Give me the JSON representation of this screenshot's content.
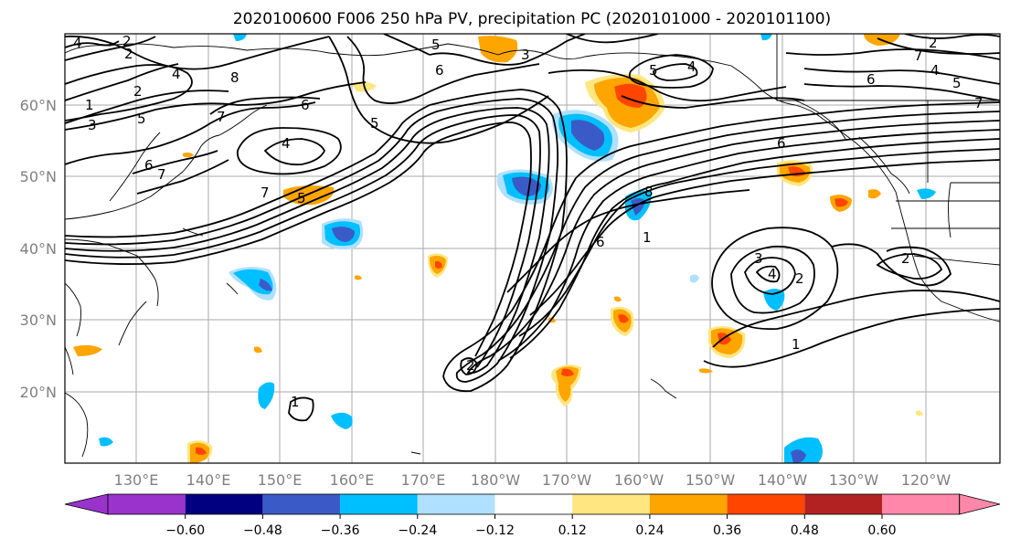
{
  "title": "2020100600 F006 250 hPa PV, precipitation PC (2020101000 - 2020101100)",
  "map": {
    "lat_labels": [
      "60°N",
      "50°N",
      "40°N",
      "30°N",
      "20°N"
    ],
    "lon_labels": [
      "130°E",
      "140°E",
      "150°E",
      "160°E",
      "170°E",
      "180°W",
      "170°W",
      "160°W",
      "150°W",
      "140°W",
      "130°W",
      "120°W"
    ],
    "pv_contour_labels": [
      "4",
      "2",
      "5",
      "2",
      "1",
      "2",
      "3",
      "5",
      "6",
      "7",
      "4",
      "8",
      "7",
      "6",
      "7",
      "5",
      "6",
      "5",
      "3",
      "4",
      "6",
      "5",
      "2",
      "4",
      "5",
      "6",
      "7",
      "4",
      "8",
      "7",
      "6",
      "1",
      "2",
      "3",
      "4",
      "2",
      "2",
      "1",
      "1"
    ]
  },
  "colorbar": {
    "tick_labels": [
      "-0.60",
      "-0.48",
      "-0.36",
      "-0.24",
      "-0.12",
      "0.12",
      "0.24",
      "0.36",
      "0.48",
      "0.60"
    ],
    "colors": [
      "#9933cc",
      "#000080",
      "#3a5bc7",
      "#00bfff",
      "#b0e0ff",
      "#ffffff",
      "#ffe680",
      "#ffa500",
      "#ff4500",
      "#b22222",
      "#ff88aa"
    ],
    "extend": "both"
  }
}
